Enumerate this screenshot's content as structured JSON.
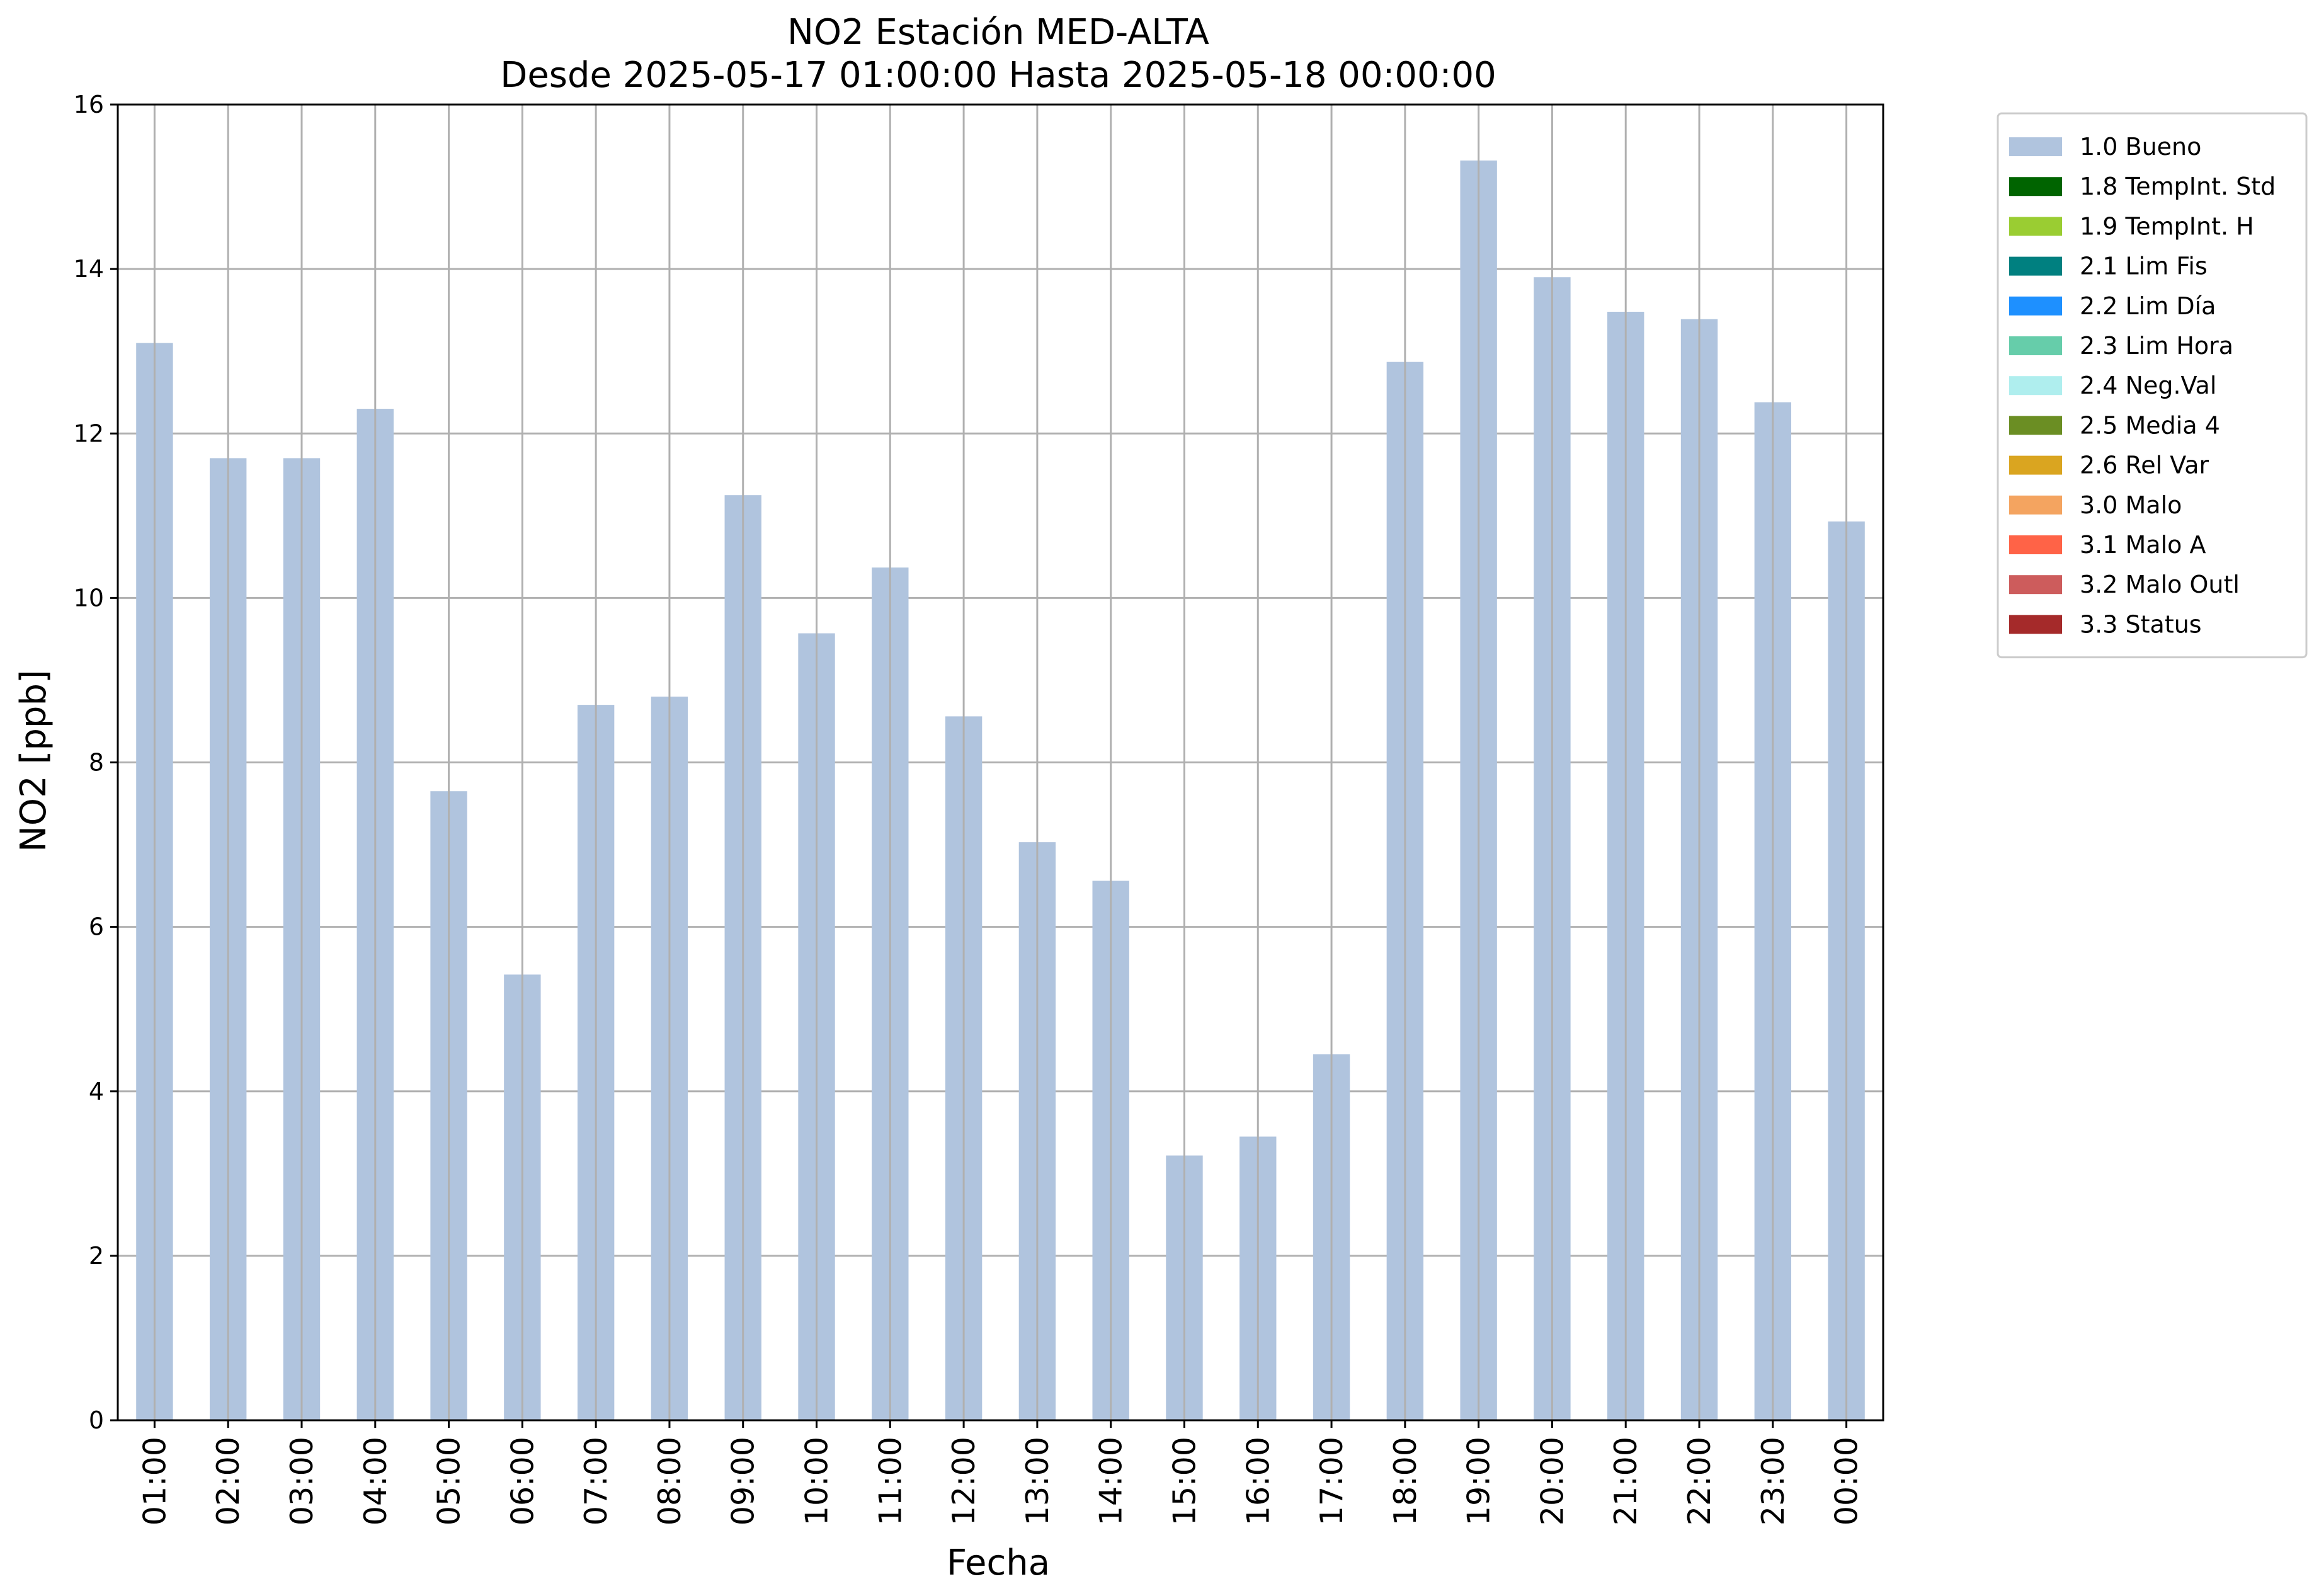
{
  "chart_data": {
    "type": "bar",
    "title": "NO2 Estación MED-ALTA",
    "subtitle": "Desde 2025-05-17 01:00:00 Hasta 2025-05-18 00:00:00",
    "xlabel": "Fecha",
    "ylabel": "NO2 [ppb]",
    "ylim": [
      0,
      16
    ],
    "yticks": [
      "0",
      "2",
      "4",
      "6",
      "8",
      "10",
      "12",
      "14",
      "16"
    ],
    "grid": true,
    "legend_position": "outside-top-right",
    "categories": [
      "01:00",
      "02:00",
      "03:00",
      "04:00",
      "05:00",
      "06:00",
      "07:00",
      "08:00",
      "09:00",
      "10:00",
      "11:00",
      "12:00",
      "13:00",
      "14:00",
      "15:00",
      "16:00",
      "17:00",
      "18:00",
      "19:00",
      "20:00",
      "21:00",
      "22:00",
      "23:00",
      "00:00"
    ],
    "series": [
      {
        "name": "1.0 Bueno",
        "color": "#b0c4de",
        "values": [
          13.1,
          11.7,
          11.7,
          12.3,
          7.65,
          5.42,
          8.7,
          8.8,
          11.25,
          9.57,
          10.37,
          8.56,
          7.03,
          6.56,
          3.22,
          3.45,
          4.45,
          12.87,
          15.32,
          13.9,
          13.48,
          13.39,
          12.38,
          10.93
        ]
      }
    ],
    "legend": [
      {
        "label": "1.0 Bueno",
        "color": "#b0c4de"
      },
      {
        "label": "1.8 TempInt. Std",
        "color": "#006400"
      },
      {
        "label": "1.9 TempInt. H",
        "color": "#9acd32"
      },
      {
        "label": "2.1 Lim Fis",
        "color": "#008080"
      },
      {
        "label": "2.2 Lim Día",
        "color": "#1e90ff"
      },
      {
        "label": "2.3 Lim Hora",
        "color": "#66cdaa"
      },
      {
        "label": "2.4 Neg.Val",
        "color": "#afeeee"
      },
      {
        "label": "2.5 Media 4",
        "color": "#6b8e23"
      },
      {
        "label": "2.6 Rel Var",
        "color": "#daa520"
      },
      {
        "label": "3.0 Malo",
        "color": "#f4a460"
      },
      {
        "label": "3.1 Malo A",
        "color": "#ff6347"
      },
      {
        "label": "3.2 Malo Outl",
        "color": "#cd5c5c"
      },
      {
        "label": "3.3 Status",
        "color": "#a52a2a"
      }
    ]
  }
}
